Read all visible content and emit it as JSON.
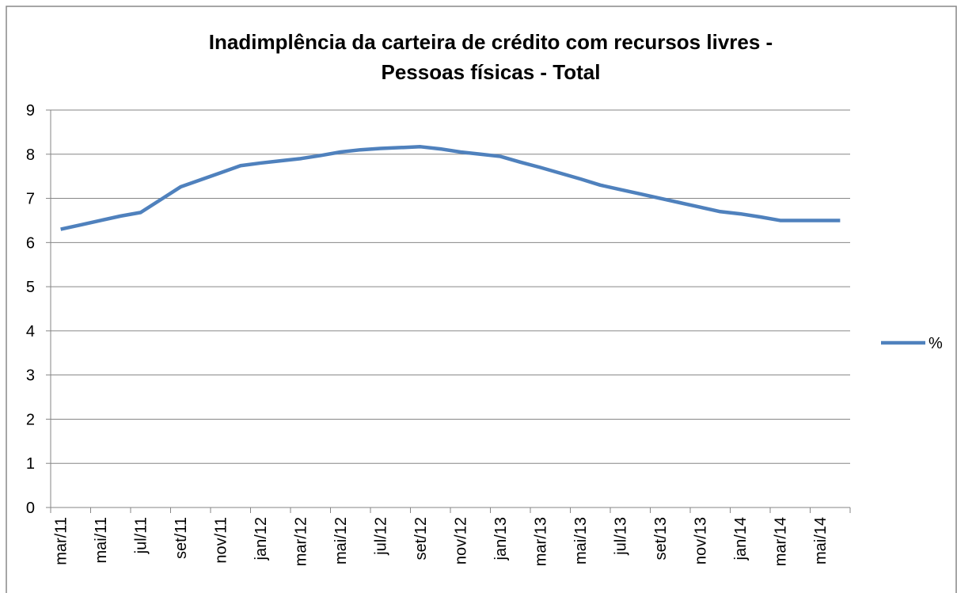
{
  "chart_data": {
    "type": "line",
    "title": [
      "Inadimplência da carteira de crédito com recursos livres -",
      "Pessoas físicas - Total"
    ],
    "categories": [
      "mar/11",
      null,
      "mai/11",
      null,
      "jul/11",
      null,
      "set/11",
      null,
      "nov/11",
      null,
      "jan/12",
      null,
      "mar/12",
      null,
      "mai/12",
      null,
      "jul/12",
      null,
      "set/12",
      null,
      "nov/12",
      null,
      "jan/13",
      null,
      "mar/13",
      null,
      "mai/13",
      null,
      "jul/13",
      null,
      "set/13",
      null,
      "nov/13",
      null,
      "jan/14",
      null,
      "mar/14",
      null,
      "mai/14",
      null
    ],
    "series": [
      {
        "name": "%",
        "color": "#4f81bd",
        "values": [
          6.3,
          6.4,
          6.5,
          6.6,
          6.68,
          6.97,
          7.26,
          7.42,
          7.58,
          7.74,
          7.8,
          7.85,
          7.9,
          7.97,
          8.05,
          8.1,
          8.13,
          8.15,
          8.17,
          8.12,
          8.05,
          8.0,
          7.95,
          7.82,
          7.7,
          7.57,
          7.44,
          7.3,
          7.2,
          7.1,
          7.0,
          6.9,
          6.8,
          6.7,
          6.65,
          6.58,
          6.5,
          6.5,
          6.5,
          6.5
        ]
      }
    ],
    "ylim": [
      0,
      9
    ],
    "yticks": [
      0,
      1,
      2,
      3,
      4,
      5,
      6,
      7,
      8,
      9
    ],
    "grid": true,
    "legend": "right"
  }
}
